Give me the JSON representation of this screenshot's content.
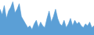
{
  "chart_data": {
    "type": "area",
    "values": [
      28,
      22,
      32,
      18,
      26,
      30,
      36,
      24,
      28,
      34,
      20,
      16,
      12,
      8,
      10,
      6,
      12,
      16,
      8,
      14,
      10,
      8,
      18,
      26,
      14,
      20,
      28,
      18,
      12,
      10,
      16,
      8,
      12,
      18,
      10,
      16,
      12,
      14,
      10,
      8,
      12,
      10,
      14,
      8,
      10
    ],
    "color": "#5b9fd6",
    "ylim": [
      0,
      38
    ],
    "grid": false,
    "tick_labels": false
  }
}
